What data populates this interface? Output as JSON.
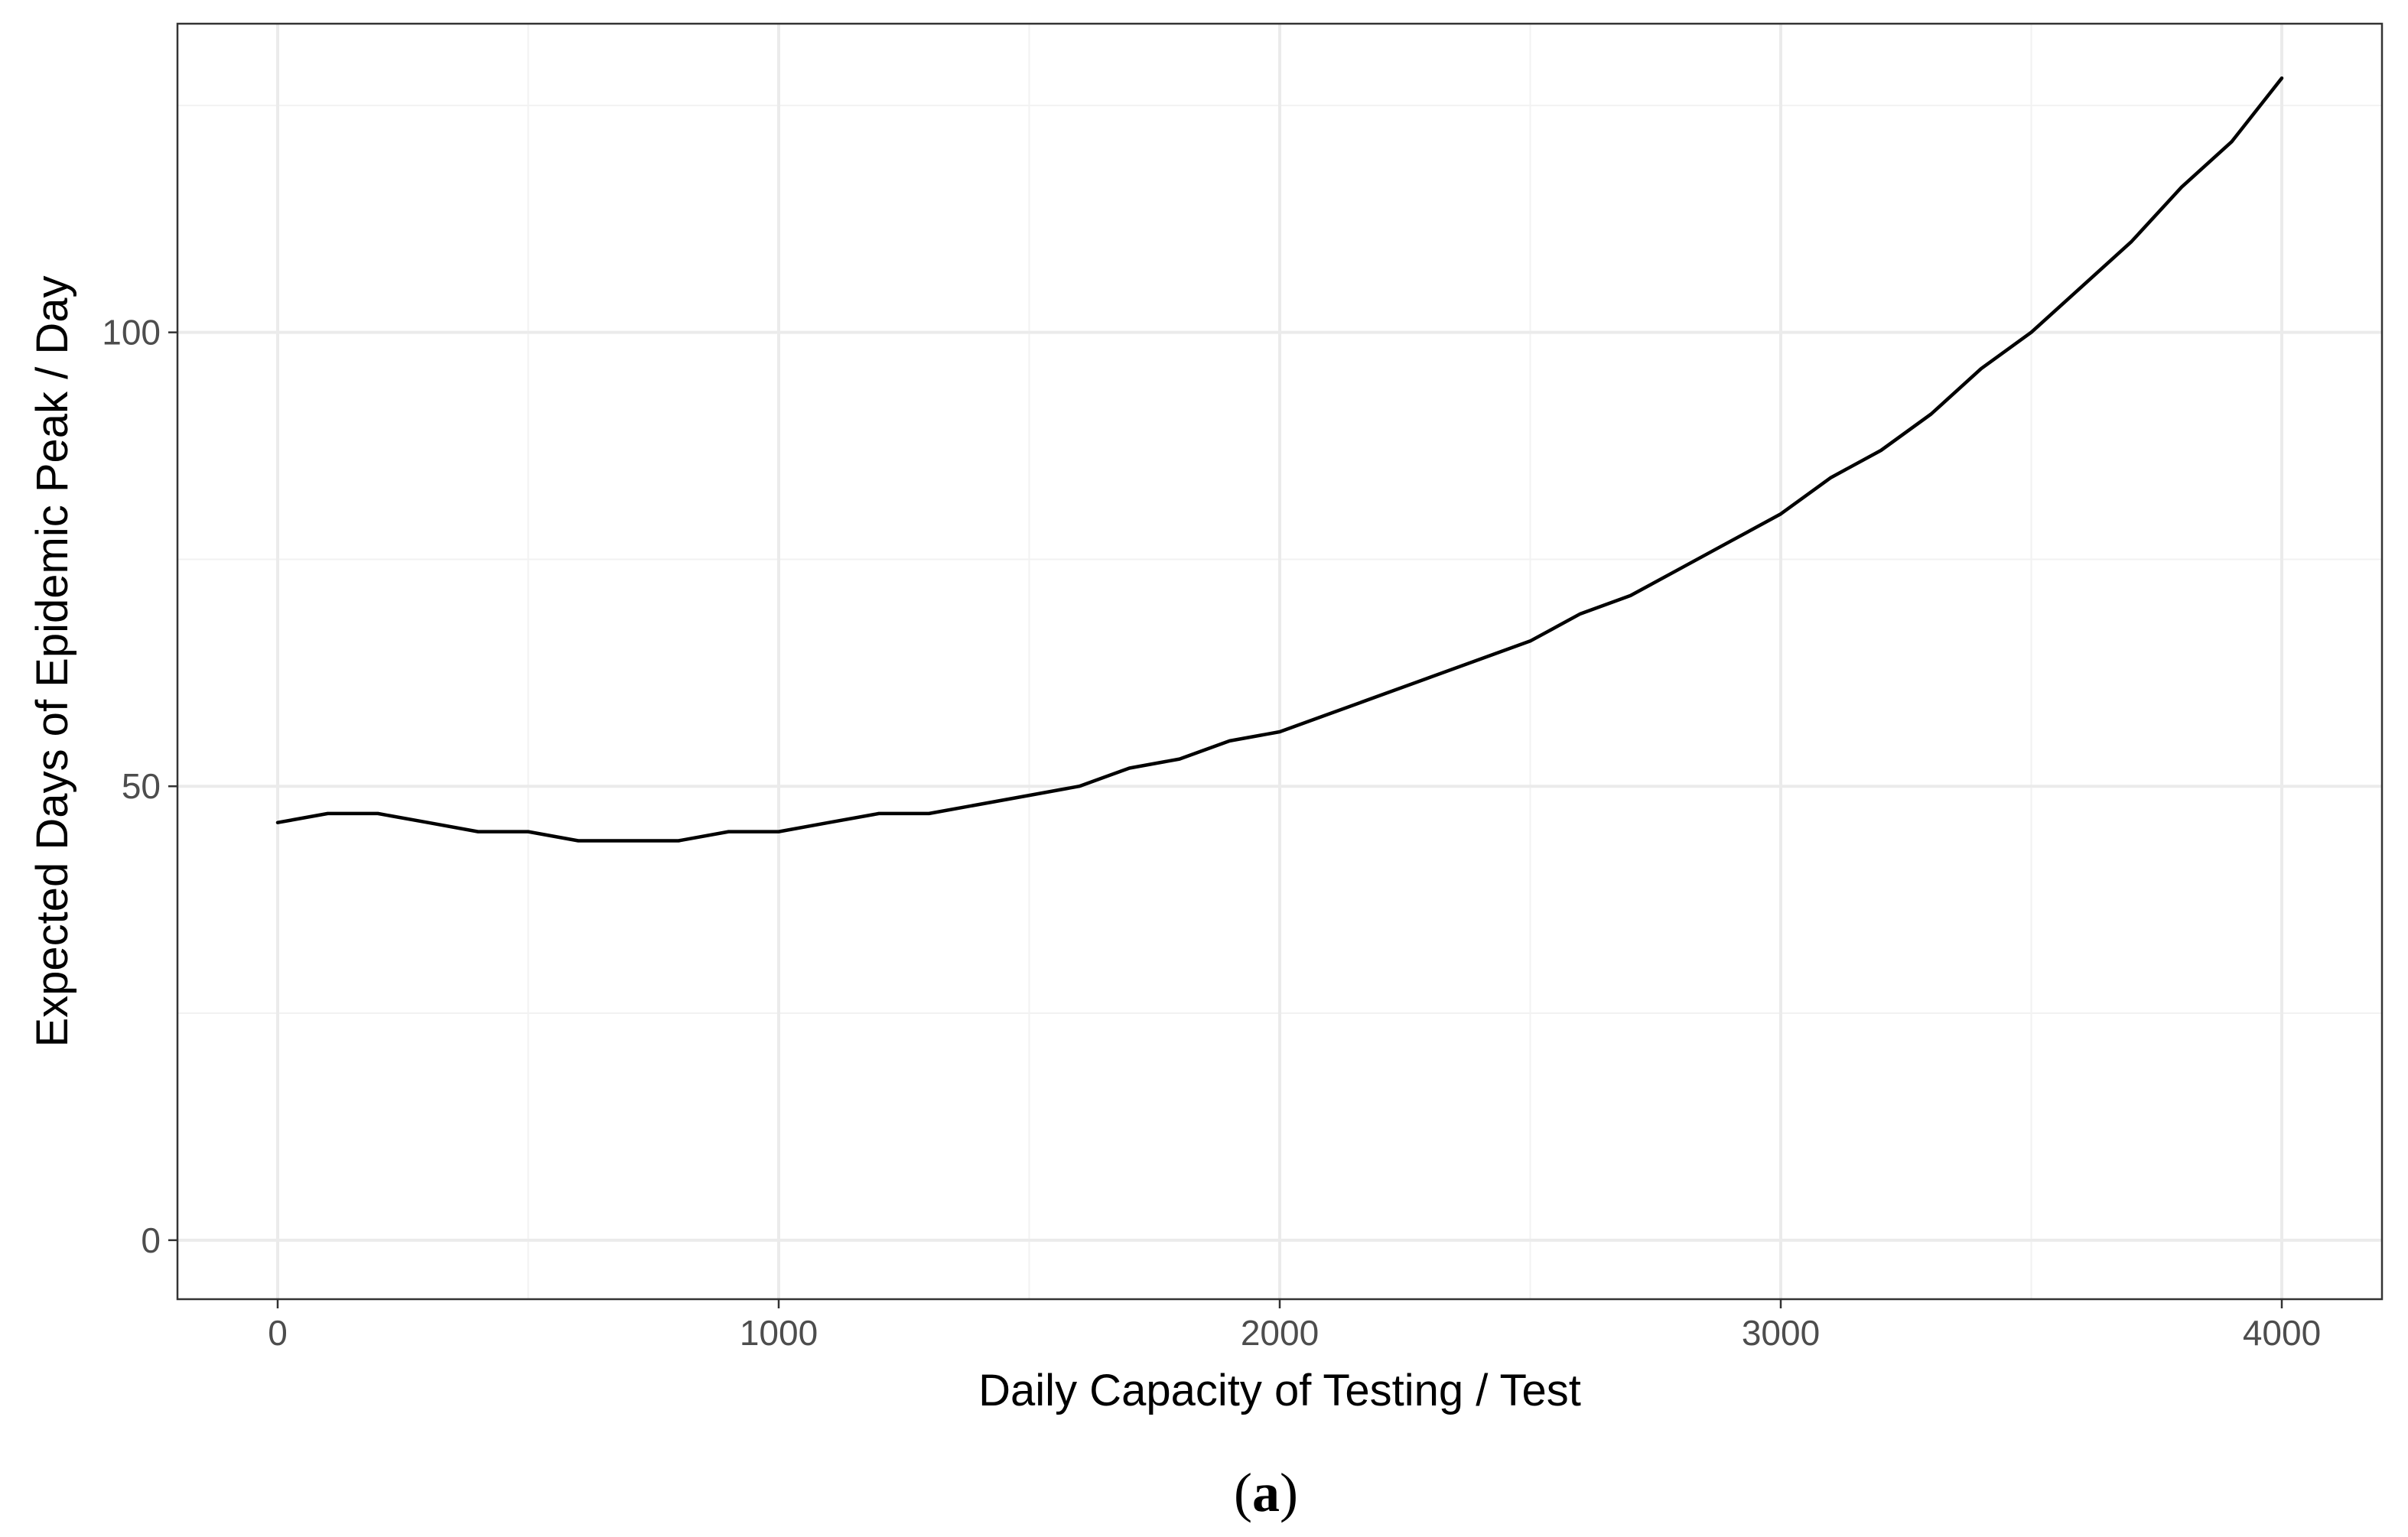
{
  "chart_data": {
    "type": "line",
    "title": "",
    "xlabel": "Daily Capacity of Testing / Test",
    "ylabel": "Expected Days of Epidemic Peak / Day",
    "xlim": [
      -200,
      4200
    ],
    "ylim": [
      -6.5,
      134
    ],
    "x_ticks": [
      0,
      1000,
      2000,
      3000,
      4000
    ],
    "x_tick_labels": [
      "0",
      "1000",
      "2000",
      "3000",
      "4000"
    ],
    "y_ticks": [
      0,
      50,
      100
    ],
    "y_tick_labels": [
      "0",
      "50",
      "100"
    ],
    "x_minor_gridlines": [
      500,
      1500,
      2500,
      3500
    ],
    "y_minor_gridlines": [
      25,
      75,
      125
    ],
    "grid": true,
    "legend": "none",
    "series": [
      {
        "x": [
          0,
          100,
          200,
          300,
          400,
          500,
          600,
          700,
          800,
          900,
          1000,
          1100,
          1200,
          1300,
          1400,
          1500,
          1600,
          1700,
          1800,
          1900,
          2000,
          2100,
          2200,
          2300,
          2400,
          2500,
          2600,
          2700,
          2800,
          2900,
          3000,
          3100,
          3200,
          3300,
          3400,
          3500,
          3600,
          3700,
          3800,
          3900,
          4000
        ],
        "y": [
          46,
          47,
          47,
          46,
          45,
          45,
          44,
          44,
          44,
          45,
          45,
          46,
          47,
          47,
          48,
          49,
          50,
          52,
          53,
          55,
          56,
          58,
          60,
          62,
          64,
          66,
          69,
          71,
          74,
          77,
          80,
          84,
          87,
          91,
          96,
          100,
          105,
          110,
          116,
          121,
          128
        ],
        "color": "#000000"
      }
    ]
  },
  "caption": {
    "open": "(",
    "letter": "a",
    "close": ")"
  }
}
